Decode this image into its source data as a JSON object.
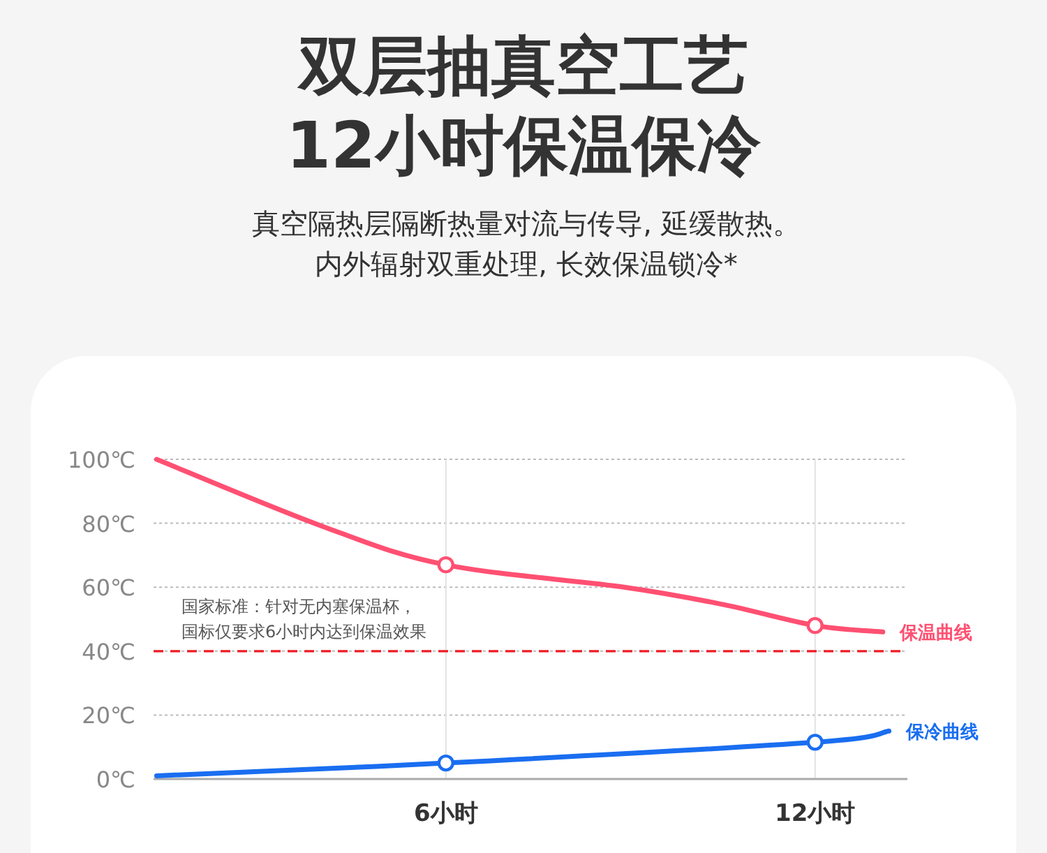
{
  "chart_data": {
    "type": "line",
    "title": "双层抽真空工艺\n12小时保温保冷",
    "subtitle": "真空隔热层隔断热量对流与传导, 延缓散热。",
    "annotations": [
      "内外辐射双重处理, 长效保温锁冷*",
      "国标仅要求6小时内达到保温效果"
    ],
    "series": [
      {
        "name": "保温曲线",
        "color": "#ff5072",
        "x": [
          1.3,
          4.0,
          6,
          8.9,
          10.5,
          12,
          13.1
        ],
        "values": [
          100,
          79,
          67,
          60,
          54.6,
          48,
          46
        ],
        "marker": "none"
      },
      {
        "name": "保冷曲线",
        "color": "#1a6ef0",
        "x": [
          1.3,
          6,
          12,
          13.2
        ],
        "values": [
          1,
          5,
          11.5,
          15
        ],
        "marker": "none"
      },
      {
        "type": "scatter",
        "color": "#ff5072",
        "x": [
          6,
          12
        ],
        "values": [
          67,
          48
        ],
        "marker": "circle"
      },
      {
        "type": "scatter",
        "color": "#1a6ef0",
        "x": [
          6,
          12
        ],
        "values": [
          5,
          11.5
        ],
        "marker": "circle"
      }
    ],
    "xlim": [
      1.25,
      13.5
    ],
    "xticks": [
      {
        "value": 6,
        "label": "6小时"
      },
      {
        "value": 12,
        "label": "12小时"
      }
    ],
    "ylim": [
      0,
      100
    ],
    "yticks": [
      {
        "value": 0,
        "label": "0℃"
      },
      {
        "value": 20,
        "label": "20℃"
      },
      {
        "value": 40,
        "label": "40℃"
      },
      {
        "value": 60,
        "label": "60℃"
      },
      {
        "value": 80,
        "label": "80℃"
      },
      {
        "value": 100,
        "label": "100℃"
      }
    ],
    "ref_lines": [
      {
        "axis": "y",
        "value": 40,
        "label": "国家标准：针对无内塞保温杯，",
        "color": "#ee1c25",
        "line_style": "dashed"
      }
    ],
    "grid": true,
    "legend": false,
    "line_style": "solid"
  }
}
